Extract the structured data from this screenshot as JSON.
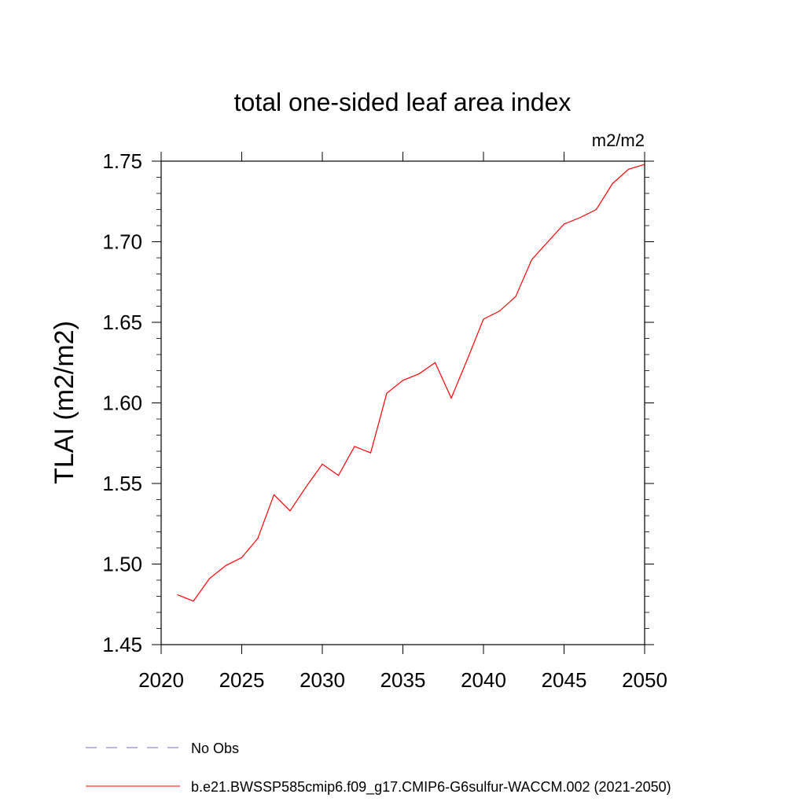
{
  "chart_data": {
    "type": "line",
    "title": "total one-sided leaf area index",
    "units": "m2/m2",
    "xlabel": "",
    "ylabel": "TLAI  (m2/m2)",
    "xlim": [
      2020,
      2050
    ],
    "ylim": [
      1.45,
      1.75
    ],
    "xticks": [
      "2020",
      "2025",
      "2030",
      "2035",
      "2040",
      "2045",
      "2050"
    ],
    "yticks": [
      "1.45",
      "1.50",
      "1.55",
      "1.60",
      "1.65",
      "1.70",
      "1.75"
    ],
    "grid": false,
    "legend_position": "bottom",
    "series": [
      {
        "name": "No Obs",
        "color": "#7b68c8",
        "style": "dashed",
        "x": [],
        "values": []
      },
      {
        "name": "b.e21.BWSSP585cmip6.f09_g17.CMIP6-G6sulfur-WACCM.002 (2021-2050)",
        "color": "#ff0000",
        "style": "solid",
        "x": [
          2021,
          2022,
          2023,
          2024,
          2025,
          2026,
          2027,
          2028,
          2029,
          2030,
          2031,
          2032,
          2033,
          2034,
          2035,
          2036,
          2037,
          2038,
          2039,
          2040,
          2041,
          2042,
          2043,
          2044,
          2045,
          2046,
          2047,
          2048,
          2049,
          2050
        ],
        "values": [
          1.481,
          1.477,
          1.491,
          1.499,
          1.504,
          1.516,
          1.543,
          1.533,
          1.548,
          1.562,
          1.555,
          1.573,
          1.569,
          1.606,
          1.614,
          1.618,
          1.625,
          1.603,
          1.627,
          1.652,
          1.657,
          1.666,
          1.689,
          1.7,
          1.711,
          1.715,
          1.72,
          1.736,
          1.745,
          1.748
        ]
      }
    ]
  }
}
